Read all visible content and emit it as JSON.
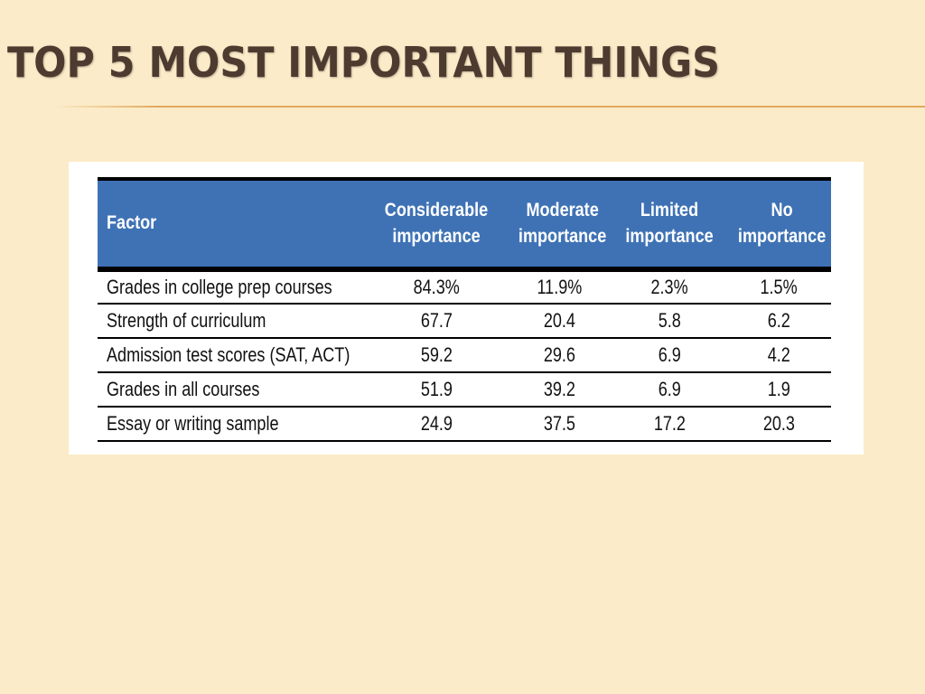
{
  "slide": {
    "title": "TOP 5 MOST IMPORTANT THINGS"
  },
  "colors": {
    "background": "#fbebc8",
    "title": "#4e3b30",
    "accent_rule": "#e2a85e",
    "table_header": "#3f72b5",
    "table_header_text": "#ffffff"
  },
  "table": {
    "headers": [
      "Factor",
      "Considerable importance",
      "Moderate importance",
      "Limited importance",
      "No importance"
    ],
    "rows": [
      [
        "Grades in college prep courses",
        "84.3%",
        "11.9%",
        "2.3%",
        "1.5%"
      ],
      [
        "Strength of curriculum",
        "67.7",
        "20.4",
        "5.8",
        "6.2"
      ],
      [
        "Admission test scores (SAT, ACT)",
        "59.2",
        "29.6",
        "6.9",
        "4.2"
      ],
      [
        "Grades in all courses",
        "51.9",
        "39.2",
        "6.9",
        "1.9"
      ],
      [
        "Essay or writing sample",
        "24.9",
        "37.5",
        "17.2",
        "20.3"
      ]
    ]
  }
}
